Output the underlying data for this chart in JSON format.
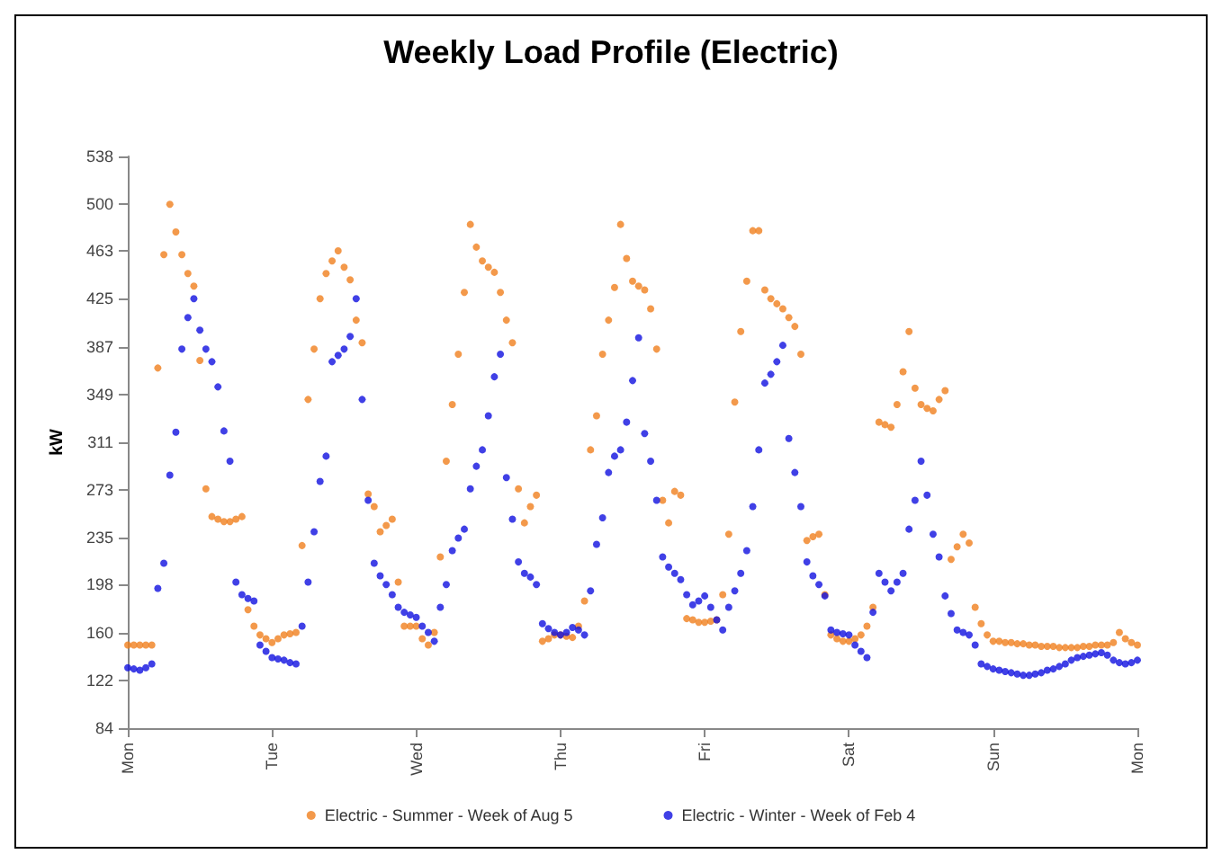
{
  "chart_data": {
    "type": "scatter",
    "title": "Weekly Load Profile (Electric)",
    "ylabel": "kW",
    "categories": [
      "Mon",
      null,
      null,
      null,
      null,
      null,
      null,
      null,
      null,
      null,
      null,
      null,
      null,
      null,
      null,
      null,
      null,
      null,
      null,
      null,
      null,
      null,
      null,
      null,
      "Tue",
      null,
      null,
      null,
      null,
      null,
      null,
      null,
      null,
      null,
      null,
      null,
      null,
      null,
      null,
      null,
      null,
      null,
      null,
      null,
      null,
      null,
      null,
      null,
      "Wed",
      null,
      null,
      null,
      null,
      null,
      null,
      null,
      null,
      null,
      null,
      null,
      null,
      null,
      null,
      null,
      null,
      null,
      null,
      null,
      null,
      null,
      null,
      null,
      "Thu",
      null,
      null,
      null,
      null,
      null,
      null,
      null,
      null,
      null,
      null,
      null,
      null,
      null,
      null,
      null,
      null,
      null,
      null,
      null,
      null,
      null,
      null,
      null,
      "Fri",
      null,
      null,
      null,
      null,
      null,
      null,
      null,
      null,
      null,
      null,
      null,
      null,
      null,
      null,
      null,
      null,
      null,
      null,
      null,
      null,
      null,
      null,
      null,
      "Sat",
      null,
      null,
      null,
      null,
      null,
      null,
      null,
      null,
      null,
      null,
      null,
      null,
      null,
      null,
      null,
      null,
      null,
      null,
      null,
      null,
      null,
      null,
      null,
      "Sun",
      null,
      null,
      null,
      null,
      null,
      null,
      null,
      null,
      null,
      null,
      null,
      null,
      null,
      null,
      null,
      null,
      null,
      null,
      null,
      null,
      null,
      null,
      null,
      "Mon"
    ],
    "ylim": [
      84,
      538
    ],
    "yticks": [
      84,
      122,
      160,
      198,
      235,
      273,
      311,
      349,
      387,
      425,
      463,
      500,
      538
    ],
    "legend": "bottom",
    "marker": "circle",
    "series": [
      {
        "name": "Electric - Summer - Week of Aug 5",
        "color": "#f07f1e",
        "values": [
          150,
          150,
          150,
          150,
          150,
          370,
          460,
          500,
          478,
          460,
          445,
          435,
          376,
          274,
          252,
          250,
          248,
          248,
          250,
          252,
          178,
          165,
          158,
          155,
          152,
          155,
          158,
          159,
          160,
          229,
          345,
          385,
          425,
          445,
          455,
          463,
          450,
          440,
          408,
          390,
          270,
          260,
          240,
          245,
          250,
          200,
          165,
          165,
          165,
          155,
          150,
          160,
          220,
          296,
          341,
          381,
          430,
          484,
          466,
          455,
          450,
          446,
          430,
          408,
          390,
          274,
          247,
          260,
          269,
          153,
          155,
          158,
          158,
          157,
          156,
          165,
          185,
          305,
          332,
          381,
          408,
          434,
          484,
          457,
          439,
          435,
          432,
          417,
          385,
          265,
          247,
          272,
          269,
          171,
          170,
          168,
          168,
          169,
          170,
          190,
          238,
          343,
          399,
          439,
          479,
          479,
          432,
          425,
          421,
          417,
          410,
          403,
          381,
          233,
          236,
          238,
          190,
          158,
          155,
          153,
          153,
          155,
          158,
          165,
          180,
          327,
          325,
          323,
          341,
          367,
          399,
          354,
          341,
          338,
          336,
          345,
          352,
          218,
          228,
          238,
          231,
          180,
          167,
          158,
          153,
          153,
          152,
          152,
          151,
          151,
          150,
          150,
          149,
          149,
          149,
          148,
          148,
          148,
          148,
          149,
          149,
          150,
          150,
          150,
          152,
          160,
          155,
          152,
          150
        ]
      },
      {
        "name": "Electric - Winter - Week of Feb 4",
        "color": "#1010e0",
        "values": [
          132,
          131,
          130,
          132,
          135,
          195,
          215,
          285,
          319,
          385,
          410,
          425,
          400,
          385,
          375,
          355,
          320,
          296,
          200,
          190,
          187,
          185,
          150,
          145,
          140,
          139,
          138,
          136,
          135,
          165,
          200,
          240,
          280,
          300,
          375,
          380,
          385,
          395,
          425,
          345,
          265,
          215,
          205,
          198,
          190,
          180,
          176,
          174,
          172,
          165,
          160,
          153,
          180,
          198,
          225,
          235,
          242,
          274,
          292,
          305,
          332,
          363,
          381,
          283,
          250,
          216,
          207,
          204,
          198,
          167,
          163,
          160,
          158,
          160,
          164,
          162,
          158,
          193,
          230,
          251,
          287,
          300,
          305,
          327,
          360,
          394,
          318,
          296,
          265,
          220,
          212,
          207,
          202,
          190,
          182,
          185,
          189,
          180,
          170,
          162,
          180,
          193,
          207,
          225,
          260,
          305,
          358,
          365,
          375,
          388,
          314,
          287,
          260,
          216,
          205,
          198,
          189,
          162,
          160,
          159,
          158,
          150,
          145,
          140,
          176,
          207,
          200,
          193,
          200,
          207,
          242,
          265,
          296,
          269,
          238,
          220,
          189,
          175,
          162,
          160,
          158,
          150,
          135,
          133,
          131,
          130,
          129,
          128,
          127,
          126,
          126,
          127,
          128,
          130,
          131,
          133,
          135,
          138,
          140,
          141,
          142,
          143,
          144,
          142,
          138,
          136,
          135,
          136,
          138
        ]
      }
    ]
  }
}
